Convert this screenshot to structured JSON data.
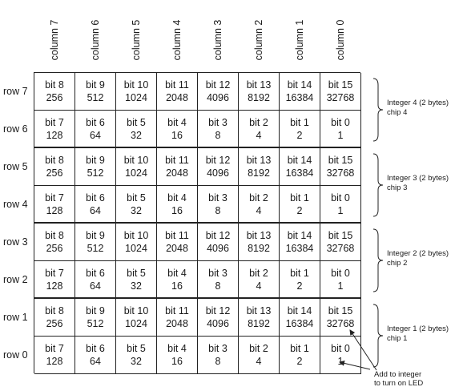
{
  "columns": [
    "column 7",
    "column 6",
    "column 5",
    "column 4",
    "column 3",
    "column 2",
    "column 1",
    "column 0"
  ],
  "rows": [
    {
      "label": "row 7",
      "cells": [
        [
          "bit 8",
          "256"
        ],
        [
          "bit 9",
          "512"
        ],
        [
          "bit 10",
          "1024"
        ],
        [
          "bit 11",
          "2048"
        ],
        [
          "bit 12",
          "4096"
        ],
        [
          "bit 13",
          "8192"
        ],
        [
          "bit 14",
          "16384"
        ],
        [
          "bit 15",
          "32768"
        ]
      ]
    },
    {
      "label": "row 6",
      "cells": [
        [
          "bit 7",
          "128"
        ],
        [
          "bit 6",
          "64"
        ],
        [
          "bit 5",
          "32"
        ],
        [
          "bit 4",
          "16"
        ],
        [
          "bit 3",
          "8"
        ],
        [
          "bit 2",
          "4"
        ],
        [
          "bit 1",
          "2"
        ],
        [
          "bit 0",
          "1"
        ]
      ]
    },
    {
      "label": "row 5",
      "cells": [
        [
          "bit 8",
          "256"
        ],
        [
          "bit 9",
          "512"
        ],
        [
          "bit 10",
          "1024"
        ],
        [
          "bit 11",
          "2048"
        ],
        [
          "bit 12",
          "4096"
        ],
        [
          "bit 13",
          "8192"
        ],
        [
          "bit 14",
          "16384"
        ],
        [
          "bit 15",
          "32768"
        ]
      ]
    },
    {
      "label": "row 4",
      "cells": [
        [
          "bit 7",
          "128"
        ],
        [
          "bit 6",
          "64"
        ],
        [
          "bit 5",
          "32"
        ],
        [
          "bit 4",
          "16"
        ],
        [
          "bit 3",
          "8"
        ],
        [
          "bit 2",
          "4"
        ],
        [
          "bit 1",
          "2"
        ],
        [
          "bit 0",
          "1"
        ]
      ]
    },
    {
      "label": "row 3",
      "cells": [
        [
          "bit 8",
          "256"
        ],
        [
          "bit 9",
          "512"
        ],
        [
          "bit 10",
          "1024"
        ],
        [
          "bit 11",
          "2048"
        ],
        [
          "bit 12",
          "4096"
        ],
        [
          "bit 13",
          "8192"
        ],
        [
          "bit 14",
          "16384"
        ],
        [
          "bit 15",
          "32768"
        ]
      ]
    },
    {
      "label": "row 2",
      "cells": [
        [
          "bit 7",
          "128"
        ],
        [
          "bit 6",
          "64"
        ],
        [
          "bit 5",
          "32"
        ],
        [
          "bit 4",
          "16"
        ],
        [
          "bit 3",
          "8"
        ],
        [
          "bit 2",
          "4"
        ],
        [
          "bit 1",
          "2"
        ],
        [
          "bit 0",
          "1"
        ]
      ]
    },
    {
      "label": "row 1",
      "cells": [
        [
          "bit 8",
          "256"
        ],
        [
          "bit 9",
          "512"
        ],
        [
          "bit 10",
          "1024"
        ],
        [
          "bit 11",
          "2048"
        ],
        [
          "bit 12",
          "4096"
        ],
        [
          "bit 13",
          "8192"
        ],
        [
          "bit 14",
          "16384"
        ],
        [
          "bit 15",
          "32768"
        ]
      ]
    },
    {
      "label": "row 0",
      "cells": [
        [
          "bit 7",
          "128"
        ],
        [
          "bit 6",
          "64"
        ],
        [
          "bit 5",
          "32"
        ],
        [
          "bit 4",
          "16"
        ],
        [
          "bit 3",
          "8"
        ],
        [
          "bit 2",
          "4"
        ],
        [
          "bit 1",
          "2"
        ],
        [
          "bit 0",
          "1"
        ]
      ]
    }
  ],
  "integers": [
    {
      "name": "Integer 4 (2 bytes)",
      "chip": "chip 4"
    },
    {
      "name": "Integer 3 (2 bytes)",
      "chip": "chip 3"
    },
    {
      "name": "Integer 2 (2 bytes)",
      "chip": "chip 2"
    },
    {
      "name": "Integer 1 (2 bytes)",
      "chip": "chip 1"
    }
  ],
  "note": {
    "line1": "Add to integer",
    "line2": "to turn on LED"
  }
}
